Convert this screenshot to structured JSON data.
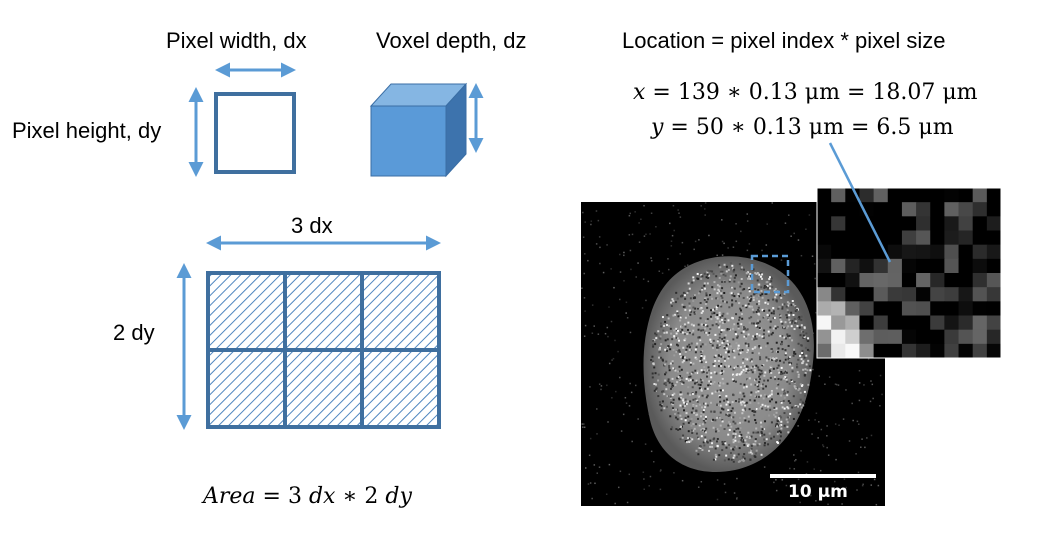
{
  "labels": {
    "pixel_width": "Pixel width, dx",
    "voxel_depth": "Voxel depth, dz",
    "pixel_height": "Pixel height, dy",
    "grid_width": "3 dx",
    "grid_height": "2 dy",
    "location_title": "Location = pixel index * pixel size",
    "scale_bar": "10 μm"
  },
  "equations": {
    "x": {
      "var": "x",
      "index": "139",
      "pixel_size": "0.13",
      "unit": "μm",
      "result": "18.07",
      "result_unit": "μm"
    },
    "y": {
      "var": "y",
      "index": "50",
      "pixel_size": "0.13",
      "unit": "μm",
      "result": "6.5",
      "result_unit": "μm"
    },
    "area": {
      "lhs": "Area",
      "a": "3",
      "a_var": "dx",
      "b": "2",
      "b_var": "dy"
    }
  },
  "colors": {
    "arrow": "#5b9bd5",
    "square_stroke": "#3f6f9f",
    "cube_front": "#5a9ad8",
    "cube_top": "#85b6e3",
    "cube_side": "#3d73ad",
    "hatch": "#4f86bf",
    "micrograph_bg": "#000000",
    "zoom_box": "#5b9bd5"
  },
  "grid": {
    "cols": 3,
    "rows": 2
  }
}
